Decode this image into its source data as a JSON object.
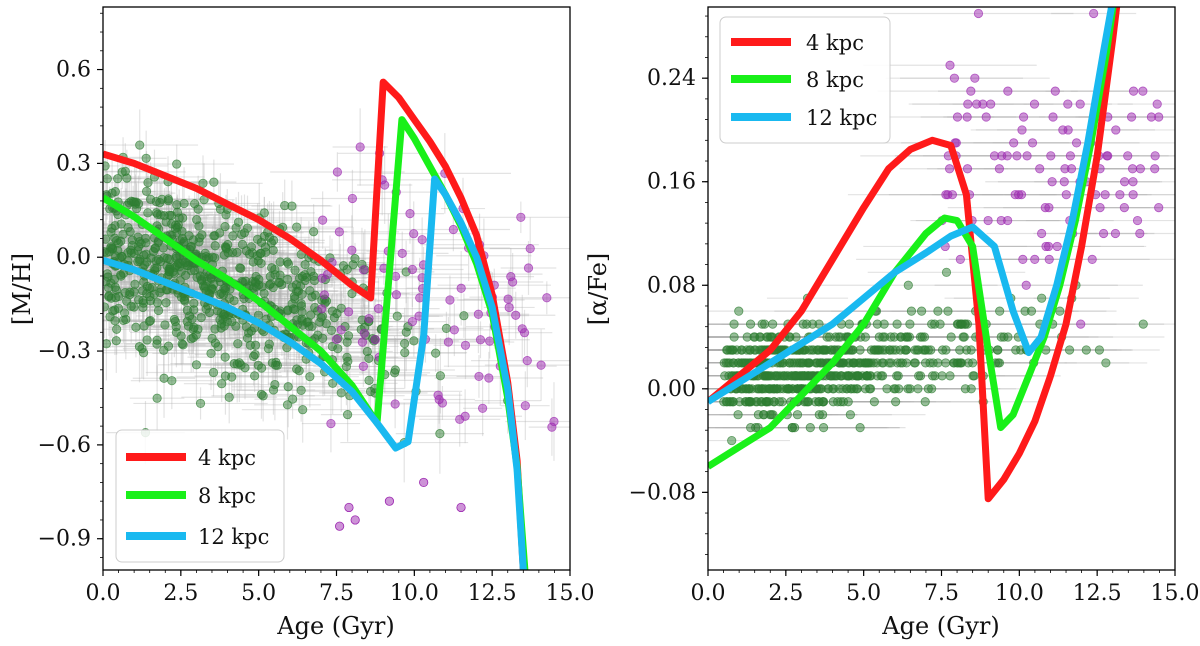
{
  "chart_data": [
    {
      "type": "scatter+line",
      "title": "",
      "xlabel": "Age (Gyr)",
      "ylabel": "[M/H]",
      "xlim": [
        0,
        15
      ],
      "ylim": [
        -1.0,
        0.8
      ],
      "xticks": [
        0,
        2.5,
        5,
        7.5,
        10,
        12.5,
        15
      ],
      "xtick_labels": [
        "0.0",
        "2.5",
        "5.0",
        "7.5",
        "10.0",
        "12.5",
        "15.0"
      ],
      "yticks": [
        0.6,
        0.3,
        0.0,
        -0.3,
        -0.6,
        -0.9
      ],
      "ytick_labels": [
        "0.6",
        "0.3",
        "0.0",
        "−0.3",
        "−0.6",
        "−0.9"
      ],
      "legend_position": "lower-left",
      "series": [
        {
          "name": "4 kpc",
          "color": "#ff1a1a",
          "x": [
            0,
            1,
            2,
            3,
            4,
            5,
            6,
            7,
            8,
            8.6,
            9.0,
            9.5,
            10,
            10.5,
            11,
            11.5,
            12,
            12.5,
            13,
            13.3,
            13.5
          ],
          "y": [
            0.33,
            0.3,
            0.26,
            0.22,
            0.17,
            0.12,
            0.06,
            -0.01,
            -0.09,
            -0.13,
            0.56,
            0.51,
            0.44,
            0.37,
            0.29,
            0.19,
            0.07,
            -0.12,
            -0.4,
            -0.65,
            -1.0
          ]
        },
        {
          "name": "8 kpc",
          "color": "#19f019",
          "x": [
            0,
            1,
            2,
            3,
            4,
            5,
            6,
            7,
            8,
            8.8,
            9.6,
            10.0,
            10.5,
            11,
            11.5,
            12,
            12.5,
            13,
            13.3,
            13.55
          ],
          "y": [
            0.19,
            0.13,
            0.06,
            -0.01,
            -0.07,
            -0.14,
            -0.22,
            -0.3,
            -0.41,
            -0.53,
            0.44,
            0.38,
            0.29,
            0.2,
            0.1,
            -0.02,
            -0.18,
            -0.45,
            -0.67,
            -1.0
          ]
        },
        {
          "name": "12 kpc",
          "color": "#19b9f0",
          "x": [
            0,
            1,
            2,
            3,
            4,
            5,
            6,
            7,
            8,
            8.8,
            9.4,
            9.8,
            10.3,
            10.65,
            11,
            11.5,
            12,
            12.5,
            13,
            13.3,
            13.5
          ],
          "y": [
            -0.01,
            -0.04,
            -0.08,
            -0.12,
            -0.16,
            -0.21,
            -0.27,
            -0.34,
            -0.43,
            -0.53,
            -0.61,
            -0.59,
            -0.25,
            0.25,
            0.2,
            0.11,
            0.0,
            -0.16,
            -0.42,
            -0.68,
            -1.0
          ]
        }
      ],
      "scatter": {
        "groups": [
          {
            "name": "green",
            "color": "#2e7d32",
            "count": 700,
            "x_range": [
              0,
              13
            ],
            "trend": "decreasing [M/H] with age, around 0.0 at young ages"
          },
          {
            "name": "purple",
            "color": "#9c27b0",
            "count": 90,
            "x_range": [
              7,
              14.5
            ],
            "trend": "older stars spread from 0.3 to -0.6"
          }
        ],
        "outliers": [
          [
            7.6,
            -0.86
          ],
          [
            8.1,
            -0.84
          ],
          [
            10.3,
            -0.72
          ],
          [
            11.5,
            -0.8
          ],
          [
            9.2,
            -0.78
          ],
          [
            7.9,
            -0.8
          ]
        ]
      }
    },
    {
      "type": "scatter+line",
      "title": "",
      "xlabel": "Age (Gyr)",
      "ylabel": "[α/Fe]",
      "xlim": [
        0,
        15
      ],
      "ylim": [
        -0.14,
        0.295
      ],
      "xticks": [
        0,
        2.5,
        5,
        7.5,
        10,
        12.5,
        15
      ],
      "xtick_labels": [
        "0.0",
        "2.5",
        "5.0",
        "7.5",
        "10.0",
        "12.5",
        "15.0"
      ],
      "yticks": [
        0.24,
        0.16,
        0.08,
        0.0,
        -0.08
      ],
      "ytick_labels": [
        "0.24",
        "0.16",
        "0.08",
        "0.00",
        "−0.08"
      ],
      "legend_position": "upper-left",
      "series": [
        {
          "name": "4 kpc",
          "color": "#ff1a1a",
          "x": [
            0,
            1,
            2,
            3,
            4,
            5,
            5.8,
            6.5,
            7.2,
            7.8,
            8.3,
            8.7,
            9.0,
            9.5,
            10,
            10.5,
            11,
            11.5,
            12,
            12.5,
            13,
            13.2
          ],
          "y": [
            -0.01,
            0.01,
            0.03,
            0.06,
            0.1,
            0.14,
            0.17,
            0.185,
            0.192,
            0.188,
            0.15,
            0.05,
            -0.085,
            -0.07,
            -0.05,
            -0.025,
            0.01,
            0.05,
            0.11,
            0.18,
            0.27,
            0.31
          ]
        },
        {
          "name": "8 kpc",
          "color": "#19f019",
          "x": [
            0,
            1,
            2,
            3,
            4,
            5,
            6,
            7,
            7.6,
            8.0,
            8.5,
            9.0,
            9.4,
            9.8,
            10.3,
            10.8,
            11.3,
            11.8,
            12.3,
            12.8,
            13.1
          ],
          "y": [
            -0.06,
            -0.045,
            -0.03,
            -0.005,
            0.02,
            0.05,
            0.09,
            0.12,
            0.132,
            0.13,
            0.11,
            0.03,
            -0.03,
            -0.02,
            0.01,
            0.04,
            0.08,
            0.13,
            0.19,
            0.26,
            0.31
          ]
        },
        {
          "name": "12 kpc",
          "color": "#19b9f0",
          "x": [
            0,
            1,
            2,
            3,
            4,
            5,
            6,
            7,
            7.8,
            8.5,
            9.2,
            9.8,
            10.3,
            10.7,
            11.2,
            11.7,
            12.2,
            12.7,
            13.0
          ],
          "y": [
            -0.01,
            0.005,
            0.02,
            0.035,
            0.05,
            0.07,
            0.09,
            0.105,
            0.118,
            0.125,
            0.11,
            0.06,
            0.028,
            0.04,
            0.08,
            0.13,
            0.19,
            0.26,
            0.3
          ]
        }
      ],
      "scatter": {
        "groups": [
          {
            "name": "green",
            "color": "#2e7d32",
            "count": 650,
            "x_range": [
              0.5,
              14
            ],
            "trend": "band around 0.0 to 0.05"
          },
          {
            "name": "purple",
            "color": "#9c27b0",
            "count": 110,
            "x_range": [
              7.5,
              14.5
            ],
            "trend": "high-alpha sequence 0.08 to 0.26"
          }
        ]
      }
    }
  ]
}
